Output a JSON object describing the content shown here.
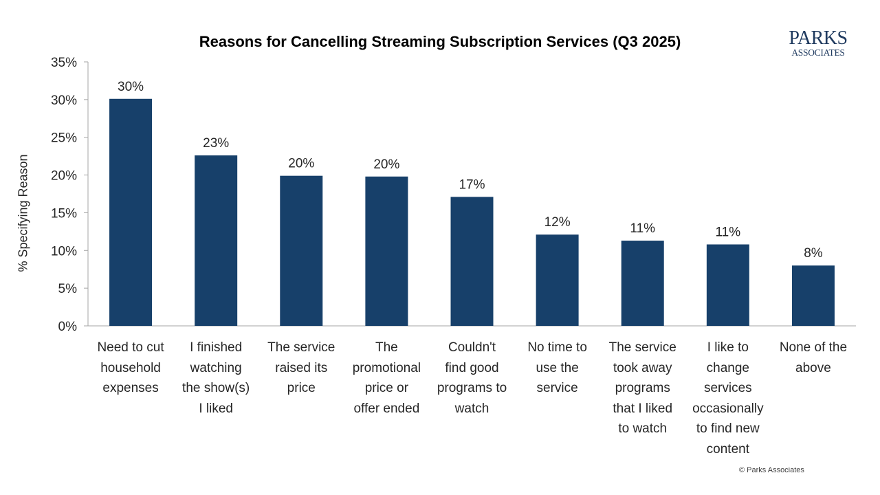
{
  "chart_data": {
    "type": "bar",
    "title": "Reasons for Cancelling Streaming Subscription Services (Q3 2025)",
    "xlabel": "",
    "ylabel": "% Specifying Reason",
    "ylim": [
      0,
      35
    ],
    "yticks": [
      "0%",
      "5%",
      "10%",
      "15%",
      "20%",
      "25%",
      "30%",
      "35%"
    ],
    "ytick_values": [
      0,
      5,
      10,
      15,
      20,
      25,
      30,
      35
    ],
    "grid": false,
    "bar_color": "#17406a",
    "categories": [
      "Need to cut household expenses",
      "I finished watching the show(s) I liked",
      "The service raised its price",
      "The promotional price or offer ended",
      "Couldn't find good programs to watch",
      "No time to use the service",
      "The service took away programs that I liked to watch",
      "I like to change services occasionally to find new content",
      "None of the above"
    ],
    "category_lines": [
      [
        "Need to cut",
        "household",
        "expenses"
      ],
      [
        "I finished",
        "watching",
        "the show(s)",
        "I liked"
      ],
      [
        "The service",
        "raised its",
        "price"
      ],
      [
        "The",
        "promotional",
        "price or",
        "offer ended"
      ],
      [
        "Couldn't",
        "find good",
        "programs to",
        "watch"
      ],
      [
        "No time to",
        "use the",
        "service"
      ],
      [
        "The service",
        "took away",
        "programs",
        "that I liked",
        "to watch"
      ],
      [
        "I like to",
        "change",
        "services",
        "occasionally",
        "to find new",
        "content"
      ],
      [
        "None of the",
        "above"
      ]
    ],
    "values": [
      30.1,
      22.6,
      19.9,
      19.8,
      17.1,
      12.1,
      11.3,
      10.8,
      8.0
    ],
    "data_labels": [
      "30%",
      "23%",
      "20%",
      "20%",
      "17%",
      "12%",
      "11%",
      "11%",
      "8%"
    ]
  },
  "logo": {
    "line1": "PARKS",
    "line2": "ASSOCIATES"
  },
  "copyright": "© Parks Associates"
}
